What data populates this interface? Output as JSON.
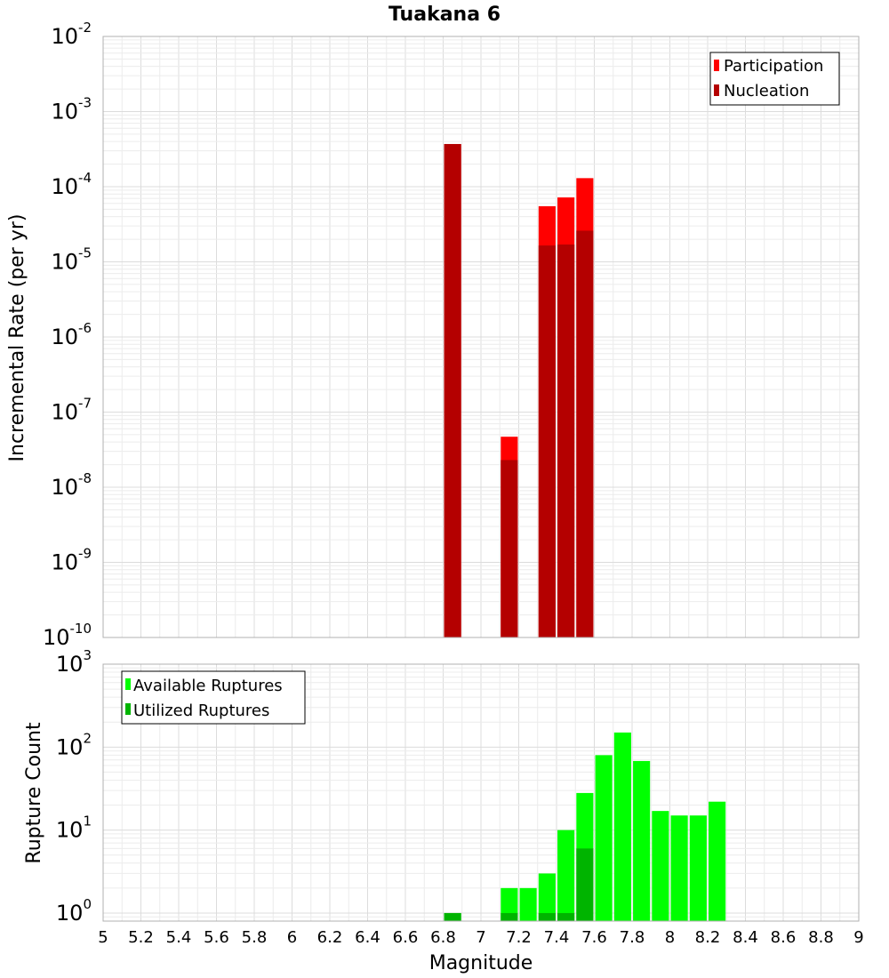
{
  "chart_data": [
    {
      "type": "bar",
      "title": "Tuakana 6",
      "xlabel": "",
      "ylabel": "Incremental Rate (per yr)",
      "yscale": "log",
      "ylim": [
        1e-10,
        0.01
      ],
      "xlim": [
        5,
        9
      ],
      "grid": true,
      "legend_position": "top-right",
      "yticks": [
        {
          "base": "10",
          "exp": "-10",
          "value": 1e-10
        },
        {
          "base": "10",
          "exp": "-9",
          "value": 1e-09
        },
        {
          "base": "10",
          "exp": "-8",
          "value": 1e-08
        },
        {
          "base": "10",
          "exp": "-7",
          "value": 1e-07
        },
        {
          "base": "10",
          "exp": "-6",
          "value": 1e-06
        },
        {
          "base": "10",
          "exp": "-5",
          "value": 1e-05
        },
        {
          "base": "10",
          "exp": "-4",
          "value": 0.0001
        },
        {
          "base": "10",
          "exp": "-3",
          "value": 0.001
        },
        {
          "base": "10",
          "exp": "-2",
          "value": 0.01
        }
      ],
      "series": [
        {
          "name": "Participation",
          "color": "#ff0000",
          "x": [
            6.85,
            7.15,
            7.35,
            7.45,
            7.55
          ],
          "values": [
            0.00037,
            4.7e-08,
            5.5e-05,
            7.2e-05,
            0.00013
          ]
        },
        {
          "name": "Nucleation",
          "color": "#b40000",
          "x": [
            6.85,
            7.15,
            7.35,
            7.45,
            7.55
          ],
          "values": [
            0.00037,
            2.3e-08,
            1.65e-05,
            1.7e-05,
            2.6e-05
          ]
        }
      ]
    },
    {
      "type": "bar",
      "xlabel": "Magnitude",
      "ylabel": "Rupture Count",
      "yscale": "log",
      "ylim": [
        0.8,
        1000
      ],
      "xlim": [
        5,
        9
      ],
      "grid": true,
      "legend_position": "top-left",
      "xticks": [
        "5",
        "5.2",
        "5.4",
        "5.6",
        "5.8",
        "6",
        "6.2",
        "6.4",
        "6.6",
        "6.8",
        "7",
        "7.2",
        "7.4",
        "7.6",
        "7.8",
        "8",
        "8.2",
        "8.4",
        "8.6",
        "8.8",
        "9"
      ],
      "yticks": [
        {
          "base": "10",
          "exp": "0",
          "value": 1
        },
        {
          "base": "10",
          "exp": "1",
          "value": 10
        },
        {
          "base": "10",
          "exp": "2",
          "value": 100
        },
        {
          "base": "10",
          "exp": "3",
          "value": 1000
        }
      ],
      "series": [
        {
          "name": "Available Ruptures",
          "color": "#00ff00",
          "x": [
            6.85,
            7.15,
            7.25,
            7.35,
            7.45,
            7.55,
            7.65,
            7.75,
            7.85,
            7.95,
            8.05,
            8.15,
            8.25
          ],
          "values": [
            1,
            2,
            2,
            3,
            10,
            28,
            80,
            150,
            68,
            17,
            15,
            15,
            22
          ]
        },
        {
          "name": "Utilized Ruptures",
          "color": "#00b400",
          "x": [
            6.85,
            7.15,
            7.35,
            7.45,
            7.55
          ],
          "values": [
            1,
            1,
            1,
            1,
            6
          ]
        }
      ]
    }
  ]
}
